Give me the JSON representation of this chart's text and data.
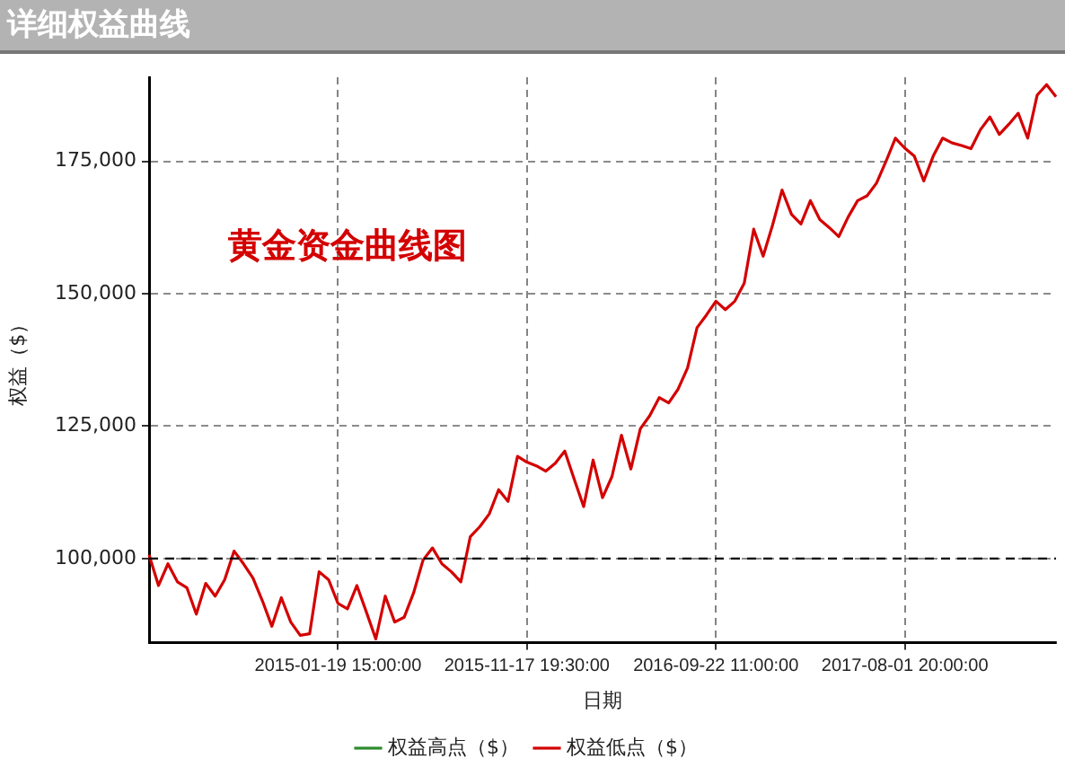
{
  "chart_data": {
    "type": "line",
    "title": "详细权益曲线",
    "xlabel": "日期",
    "ylabel": "权益（$）",
    "annotations": [
      "黄金资金曲线图"
    ],
    "categories": [
      null,
      null,
      null,
      null,
      null,
      null,
      null,
      null,
      null,
      null,
      null,
      null,
      null,
      null,
      null,
      null,
      null,
      null,
      null,
      null,
      "2015-01-19 15:00:00",
      null,
      null,
      null,
      null,
      null,
      null,
      null,
      null,
      null,
      null,
      null,
      null,
      null,
      null,
      null,
      null,
      null,
      null,
      null,
      "2015-11-17 19:30:00",
      null,
      null,
      null,
      null,
      null,
      null,
      null,
      null,
      null,
      null,
      null,
      null,
      null,
      null,
      null,
      null,
      null,
      null,
      null,
      "2016-09-22 11:00:00",
      null,
      null,
      null,
      null,
      null,
      null,
      null,
      null,
      null,
      null,
      null,
      null,
      null,
      null,
      null,
      null,
      null,
      null,
      null,
      "2017-08-01 20:00:00",
      null,
      null,
      null,
      null,
      null,
      null,
      null,
      null,
      null,
      null,
      null,
      null,
      null,
      null,
      null,
      null
    ],
    "series": [
      {
        "name": "权益高点（$）",
        "color": "#2e8b2e",
        "values": [
          null,
          null,
          null,
          null,
          null,
          null,
          null,
          null,
          null,
          null,
          null,
          null,
          null,
          null,
          null,
          null,
          null,
          null,
          null,
          null,
          null,
          null,
          null,
          null,
          null,
          null,
          null,
          null,
          null,
          null,
          null,
          null,
          null,
          null,
          null,
          null,
          null,
          null,
          null,
          null,
          null,
          null,
          null,
          null,
          null,
          null,
          null,
          null,
          null,
          null,
          null,
          null,
          null,
          null,
          null,
          null,
          null,
          null,
          null,
          null,
          null,
          null,
          null,
          null,
          null,
          null,
          null,
          null,
          null,
          null,
          null,
          null,
          null,
          null,
          null,
          null,
          null,
          null,
          null,
          null,
          null,
          null,
          null,
          null,
          null,
          null,
          null,
          null,
          null,
          null,
          null,
          null,
          null,
          null,
          null,
          null,
          null
        ]
      },
      {
        "name": "权益低点（$）",
        "color": "#d40000",
        "values": [
          100700,
          94900,
          99000,
          95600,
          94500,
          89500,
          95300,
          92900,
          96000,
          101400,
          99000,
          96300,
          92000,
          87200,
          92600,
          88000,
          85500,
          85800,
          97500,
          96000,
          91500,
          90500,
          94900,
          89900,
          84800,
          92900,
          88000,
          88900,
          93500,
          99700,
          102000,
          99000,
          97500,
          95600,
          104100,
          106000,
          108400,
          113000,
          110800,
          119300,
          118200,
          117500,
          116500,
          118000,
          120300,
          115000,
          109800,
          118600,
          111500,
          115500,
          123300,
          116900,
          124500,
          127000,
          130400,
          129400,
          132000,
          136000,
          143600,
          146000,
          148600,
          147000,
          148600,
          152000,
          162200,
          157100,
          163000,
          169600,
          165000,
          163200,
          167600,
          164000,
          162500,
          160800,
          164500,
          167600,
          168500,
          170900,
          175000,
          179400,
          177500,
          176000,
          171300,
          176000,
          179400,
          178500,
          178000,
          177400,
          181000,
          183400,
          180100,
          182000,
          184100,
          179400,
          187500,
          189500,
          187200
        ]
      }
    ],
    "ylim": [
      84100,
      190900
    ],
    "yticks": [
      {
        "value": 100000,
        "label": "100,000"
      },
      {
        "value": 125000,
        "label": "125,000"
      },
      {
        "value": 150000,
        "label": "150,000"
      },
      {
        "value": 175000,
        "label": "175,000"
      }
    ],
    "ref_lines": [
      {
        "axis": "y",
        "value": 100000,
        "color": "#000000",
        "line_style": "dashed"
      }
    ],
    "grid": true,
    "legend": "bottom",
    "marker": "none"
  }
}
